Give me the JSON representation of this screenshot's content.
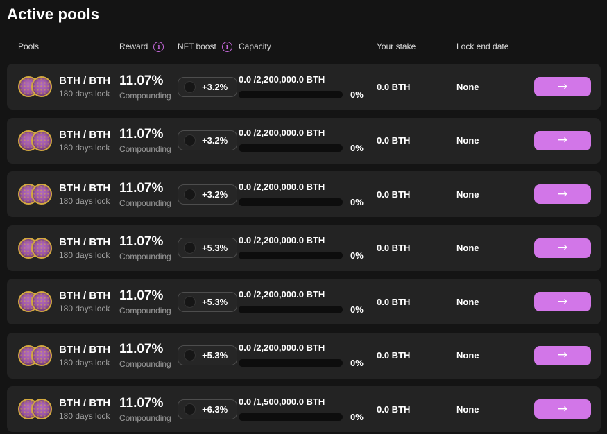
{
  "page": {
    "title": "Active pools"
  },
  "colors": {
    "background": "#141414",
    "card": "#232323",
    "accent": "#d276e8",
    "info_icon": "#c869de",
    "coin_gold": "#d3a93f",
    "coin_purple": "#9c55a4"
  },
  "icons": {
    "info": "i",
    "arrow_right": "→"
  },
  "table": {
    "columns": [
      {
        "label": "Pools",
        "has_info": false
      },
      {
        "label": "Reward",
        "has_info": true
      },
      {
        "label": "NFT boost",
        "has_info": true
      },
      {
        "label": "Capacity",
        "has_info": false
      },
      {
        "label": "Your stake",
        "has_info": false
      },
      {
        "label": "Lock end date",
        "has_info": false
      }
    ],
    "rows": [
      {
        "pool_name": "BTH / BTH",
        "pool_sub": "180 days lock",
        "reward": "11.07%",
        "reward_type": "Compounding",
        "nft_boost": "+3.2%",
        "capacity": "0.0 /2,200,000.0 BTH",
        "capacity_percent": "0%",
        "capacity_fill": "0%",
        "your_stake": "0.0 BTH",
        "lock_end": "None"
      },
      {
        "pool_name": "BTH / BTH",
        "pool_sub": "180 days lock",
        "reward": "11.07%",
        "reward_type": "Compounding",
        "nft_boost": "+3.2%",
        "capacity": "0.0 /2,200,000.0 BTH",
        "capacity_percent": "0%",
        "capacity_fill": "0%",
        "your_stake": "0.0 BTH",
        "lock_end": "None"
      },
      {
        "pool_name": "BTH / BTH",
        "pool_sub": "180 days lock",
        "reward": "11.07%",
        "reward_type": "Compounding",
        "nft_boost": "+3.2%",
        "capacity": "0.0 /2,200,000.0 BTH",
        "capacity_percent": "0%",
        "capacity_fill": "0%",
        "your_stake": "0.0 BTH",
        "lock_end": "None"
      },
      {
        "pool_name": "BTH / BTH",
        "pool_sub": "180 days lock",
        "reward": "11.07%",
        "reward_type": "Compounding",
        "nft_boost": "+5.3%",
        "capacity": "0.0 /2,200,000.0 BTH",
        "capacity_percent": "0%",
        "capacity_fill": "0%",
        "your_stake": "0.0 BTH",
        "lock_end": "None"
      },
      {
        "pool_name": "BTH / BTH",
        "pool_sub": "180 days lock",
        "reward": "11.07%",
        "reward_type": "Compounding",
        "nft_boost": "+5.3%",
        "capacity": "0.0 /2,200,000.0 BTH",
        "capacity_percent": "0%",
        "capacity_fill": "0%",
        "your_stake": "0.0 BTH",
        "lock_end": "None"
      },
      {
        "pool_name": "BTH / BTH",
        "pool_sub": "180 days lock",
        "reward": "11.07%",
        "reward_type": "Compounding",
        "nft_boost": "+5.3%",
        "capacity": "0.0 /2,200,000.0 BTH",
        "capacity_percent": "0%",
        "capacity_fill": "0%",
        "your_stake": "0.0 BTH",
        "lock_end": "None"
      },
      {
        "pool_name": "BTH / BTH",
        "pool_sub": "180 days lock",
        "reward": "11.07%",
        "reward_type": "Compounding",
        "nft_boost": "+6.3%",
        "capacity": "0.0 /1,500,000.0 BTH",
        "capacity_percent": "0%",
        "capacity_fill": "0%",
        "your_stake": "0.0 BTH",
        "lock_end": "None"
      }
    ]
  }
}
